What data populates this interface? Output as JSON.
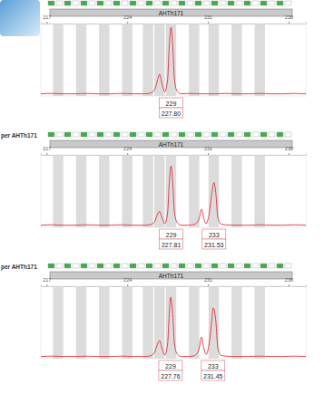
{
  "chart_data": [
    {
      "type": "line",
      "title": "AHTh171",
      "color": "#e0303a",
      "xlim": [
        216.5,
        239.5
      ],
      "xticks": [
        217,
        224,
        231,
        238
      ],
      "ylim": [
        0,
        100
      ],
      "tick_labels": "x",
      "x": [
        216.5,
        217.5,
        218.5,
        219.5,
        220.5,
        221.5,
        222.5,
        223.5,
        224.5,
        225.3,
        225.9,
        226.35,
        226.6,
        226.8,
        227.0,
        227.25,
        227.5,
        227.65,
        227.8,
        227.95,
        228.1,
        228.35,
        228.7,
        229.5,
        230.5,
        231.5,
        232.5,
        233.5,
        234.5,
        235.5,
        236.5,
        237.5,
        238.5,
        239.5
      ],
      "values": [
        3,
        3.5,
        3,
        3,
        3.5,
        3,
        3,
        3.5,
        3,
        3,
        3.5,
        8,
        20,
        30,
        18,
        6,
        22,
        70,
        95,
        68,
        22,
        6,
        3,
        3.5,
        3,
        3,
        3.5,
        3,
        3,
        3.5,
        3,
        3,
        3.5,
        3
      ],
      "allele_bins": [
        218.0,
        220.0,
        222.0,
        224.0,
        225.8,
        226.8,
        227.8,
        229.8,
        231.5,
        233.5,
        235.5
      ],
      "peaks": {
        "allele": [
          "229"
        ],
        "size": [
          227.8
        ],
        "size_labels": [
          "227.80"
        ]
      }
    },
    {
      "type": "line",
      "title": "AHTh171",
      "subtitle": "per AHTh171",
      "color": "#e0303a",
      "xlim": [
        216.5,
        239.5
      ],
      "xticks": [
        217,
        224,
        231,
        238
      ],
      "ylim": [
        0,
        100
      ],
      "tick_labels": "x",
      "x": [
        216.5,
        217.5,
        218.5,
        219.5,
        220.5,
        221.5,
        222.5,
        223.5,
        224.5,
        225.3,
        225.9,
        226.35,
        226.6,
        226.8,
        227.0,
        227.25,
        227.5,
        227.65,
        227.81,
        227.95,
        228.1,
        228.35,
        228.7,
        229.3,
        229.8,
        230.2,
        230.45,
        230.65,
        230.85,
        231.1,
        231.35,
        231.53,
        231.7,
        231.85,
        232.1,
        232.5,
        233.5,
        234.5,
        235.5,
        236.5,
        237.5,
        238.5,
        239.5
      ],
      "values": [
        3,
        3.5,
        3,
        3,
        3.5,
        3,
        3,
        3.5,
        3,
        3,
        3.5,
        7,
        17,
        22,
        14,
        5,
        20,
        62,
        85,
        60,
        20,
        6,
        3,
        3,
        4,
        10,
        25,
        12,
        5,
        18,
        48,
        62,
        45,
        15,
        5,
        3.5,
        3,
        3,
        3.5,
        3,
        3,
        3.5,
        3
      ],
      "allele_bins": [
        218.0,
        220.0,
        222.0,
        224.0,
        225.8,
        226.8,
        227.8,
        229.8,
        231.5,
        233.5,
        235.5
      ],
      "peaks": {
        "allele": [
          "229",
          "233"
        ],
        "size": [
          227.81,
          231.53
        ],
        "size_labels": [
          "227.81",
          "231.53"
        ]
      }
    },
    {
      "type": "line",
      "title": "AHTh171",
      "subtitle": "per AHTh171",
      "color": "#e0303a",
      "xlim": [
        216.5,
        239.5
      ],
      "xticks": [
        217,
        224,
        231,
        238
      ],
      "ylim": [
        0,
        100
      ],
      "tick_labels": "x",
      "x": [
        216.5,
        217.5,
        218.5,
        219.5,
        220.5,
        221.5,
        222.5,
        223.5,
        224.5,
        225.3,
        225.9,
        226.35,
        226.6,
        226.8,
        227.0,
        227.25,
        227.5,
        227.65,
        227.76,
        227.95,
        228.1,
        228.35,
        228.7,
        229.3,
        229.8,
        230.2,
        230.45,
        230.65,
        230.85,
        231.1,
        231.35,
        231.45,
        231.7,
        231.85,
        232.1,
        232.5,
        233.5,
        234.5,
        235.5,
        236.5,
        237.5,
        238.5,
        239.5
      ],
      "values": [
        3,
        3.5,
        3,
        3,
        3.5,
        3,
        3,
        3.5,
        3,
        3,
        3.5,
        8,
        19,
        25,
        15,
        5,
        20,
        62,
        85,
        60,
        20,
        6,
        3,
        3,
        4,
        12,
        30,
        14,
        6,
        20,
        55,
        70,
        50,
        16,
        5,
        3.5,
        3,
        3,
        3.5,
        3,
        3,
        3.5,
        3
      ],
      "allele_bins": [
        218.0,
        220.0,
        222.0,
        224.0,
        225.8,
        226.8,
        227.8,
        229.8,
        231.5,
        233.5,
        235.5
      ],
      "peaks": {
        "allele": [
          "229",
          "233"
        ],
        "size": [
          227.76,
          231.45
        ],
        "size_labels": [
          "227.76",
          "231.45"
        ]
      }
    }
  ]
}
